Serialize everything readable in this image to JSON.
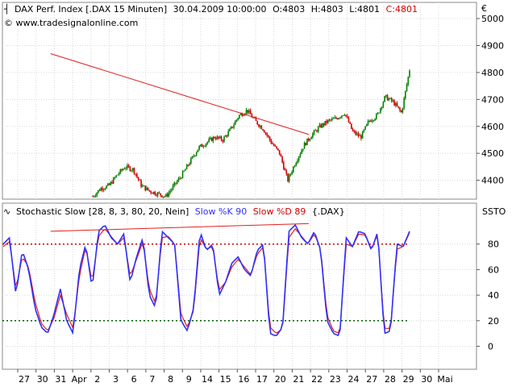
{
  "header": {
    "instrument": "DAX Perf. Index [.DAX  15 Minuten]",
    "datetime": "30.04.2009 10:00:00",
    "open": "O:4803",
    "high": "H:4803",
    "low": "L:4801",
    "close": "C:4801",
    "copyright": "© www.tradesignalonline.com"
  },
  "colors": {
    "up_candle": "#008000",
    "down_candle": "#d00000",
    "trendline": "#e02020",
    "slow_k": "#3030ff",
    "slow_d": "#e02020",
    "overbought_line": "#d00000",
    "oversold_line": "#006000",
    "grid": "#d8d8d8"
  },
  "chart_data": [
    {
      "type": "candlestick",
      "title": "DAX Perf. Index [.DAX  15 Minuten]",
      "ylabel": "€",
      "ylim": [
        4330,
        5060
      ],
      "yticks": [
        4400,
        4500,
        4600,
        4700,
        4800,
        4900,
        5000
      ],
      "grid": true,
      "x_categories": [
        "27",
        "30",
        "31",
        "Apr",
        "2",
        "3",
        "6",
        "7",
        "8",
        "9",
        "14",
        "15",
        "16",
        "17",
        "20",
        "21",
        "22",
        "23",
        "24",
        "27",
        "28",
        "29",
        "30",
        "Mai"
      ],
      "close_path": [
        4340,
        4370,
        4380,
        4420,
        4450,
        4440,
        4380,
        4360,
        4350,
        4340,
        4380,
        4420,
        4470,
        4520,
        4540,
        4560,
        4550,
        4590,
        4640,
        4660,
        4620,
        4590,
        4540,
        4500,
        4400,
        4470,
        4530,
        4570,
        4600,
        4620,
        4630,
        4650,
        4580,
        4560,
        4620,
        4640,
        4710,
        4690,
        4650,
        4810
      ],
      "trendlines": [
        {
          "from": [
            "22",
            4570
          ],
          "to": [
            "30",
            4870
          ]
        }
      ]
    },
    {
      "type": "line",
      "title": "Stochastic Slow [28, 8, 3, 80, 20, Nein]",
      "instrument": "{.DAX}",
      "ylabel": "SSTO",
      "ylim": [
        -18,
        112
      ],
      "yticks": [
        0,
        20,
        40,
        60,
        80
      ],
      "levels": [
        {
          "value": 80,
          "label": "80"
        },
        {
          "value": 20,
          "label": "20"
        }
      ],
      "series": [
        {
          "name": "Slow %K",
          "last_label": "Slow %K 90",
          "values": [
            80,
            85,
            40,
            75,
            60,
            30,
            15,
            10,
            25,
            45,
            20,
            10,
            60,
            80,
            45,
            90,
            95,
            85,
            80,
            88,
            50,
            70,
            85,
            40,
            30,
            90,
            85,
            80,
            20,
            12,
            30,
            90,
            75,
            80,
            40,
            50,
            65,
            70,
            60,
            55,
            75,
            80,
            10,
            8,
            15,
            90,
            95,
            85,
            80,
            90,
            75,
            20,
            10,
            8,
            85,
            78,
            90,
            88,
            75,
            90,
            10,
            12,
            80,
            78,
            90
          ]
        },
        {
          "name": "Slow %D",
          "last_label": "Slow %D 89",
          "values": [
            78,
            82,
            45,
            70,
            62,
            35,
            18,
            12,
            22,
            40,
            25,
            14,
            55,
            78,
            50,
            86,
            92,
            86,
            80,
            85,
            55,
            68,
            82,
            45,
            33,
            85,
            86,
            80,
            25,
            15,
            28,
            85,
            76,
            78,
            44,
            50,
            62,
            68,
            62,
            56,
            72,
            78,
            15,
            10,
            14,
            85,
            92,
            86,
            80,
            88,
            76,
            24,
            12,
            10,
            80,
            78,
            88,
            87,
            76,
            88,
            14,
            14,
            76,
            78,
            89
          ]
        }
      ],
      "trendlines": [
        {
          "from": [
            "22",
            96
          ],
          "to": [
            "30",
            90
          ]
        }
      ]
    }
  ]
}
